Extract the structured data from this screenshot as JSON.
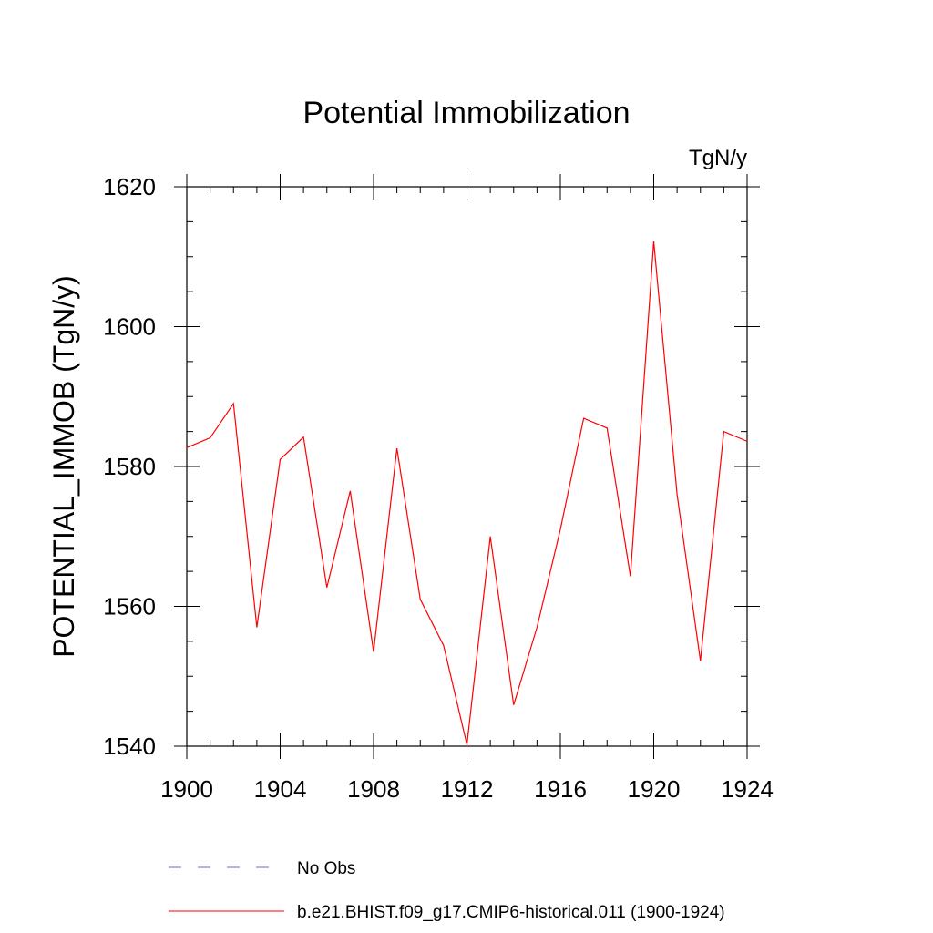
{
  "chart_data": {
    "type": "line",
    "title": "Potential Immobilization",
    "units_label": "TgN/y",
    "ylabel": "POTENTIAL_IMMOB  (TgN/y)",
    "xlabel": "",
    "xlim": [
      1900,
      1924
    ],
    "ylim": [
      1540,
      1620
    ],
    "x_ticks": [
      1900,
      1904,
      1908,
      1912,
      1916,
      1920,
      1924
    ],
    "y_ticks": [
      1540,
      1560,
      1580,
      1600,
      1620
    ],
    "x_tick_labels": [
      "1900",
      "1904",
      "1908",
      "1912",
      "1916",
      "1920",
      "1924"
    ],
    "y_tick_labels": [
      "1540",
      "1560",
      "1580",
      "1600",
      "1620"
    ],
    "grid": false,
    "legend_position": "bottom",
    "series": [
      {
        "name": "b.e21.BHIST.f09_g17.CMIP6-historical.011 (1900-1924)",
        "color": "#ff0000",
        "dash": "solid",
        "x": [
          1900,
          1901,
          1902,
          1903,
          1904,
          1905,
          1906,
          1907,
          1908,
          1909,
          1910,
          1911,
          1912,
          1913,
          1914,
          1915,
          1916,
          1917,
          1918,
          1919,
          1920,
          1921,
          1922,
          1923,
          1924
        ],
        "values": [
          1582.7,
          1584.1,
          1589.0,
          1557.0,
          1581.0,
          1584.2,
          1562.7,
          1576.5,
          1553.5,
          1582.6,
          1561.0,
          1554.4,
          1540.2,
          1570.0,
          1545.9,
          1557.0,
          1571.0,
          1586.9,
          1585.5,
          1564.3,
          1612.2,
          1576.0,
          1552.2,
          1585.0,
          1583.6
        ]
      }
    ],
    "legend": [
      {
        "label": "No Obs",
        "color": "#6666cc",
        "dash": "dashed"
      },
      {
        "label": "b.e21.BHIST.f09_g17.CMIP6-historical.011 (1900-1924)",
        "color": "#ff0000",
        "dash": "solid"
      }
    ]
  }
}
